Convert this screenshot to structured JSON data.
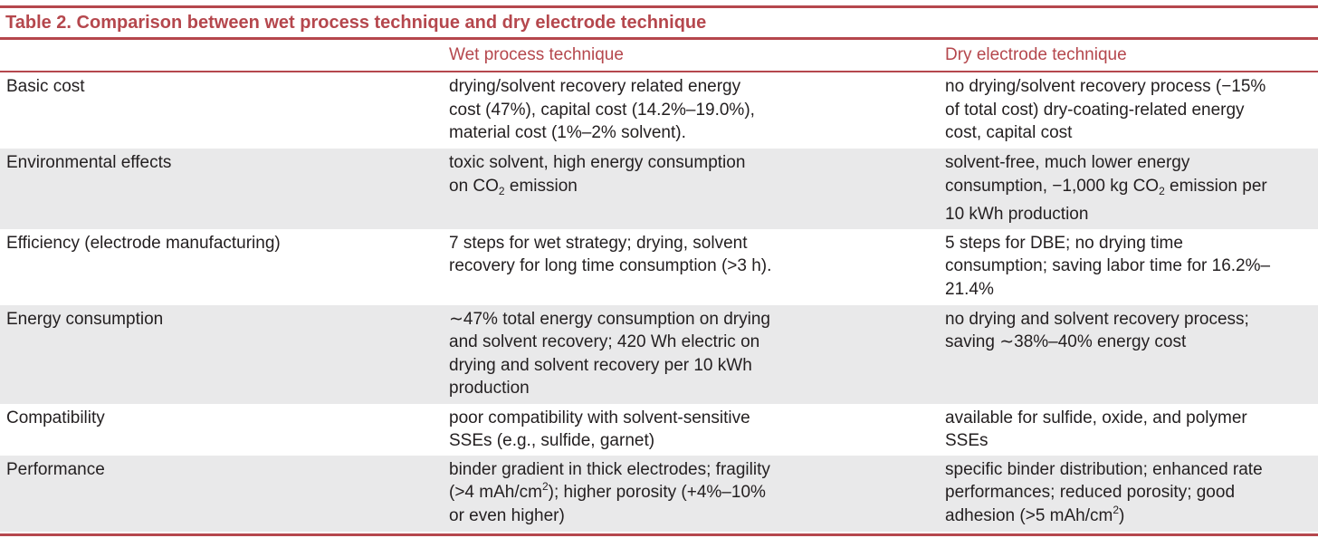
{
  "table": {
    "title": "Table 2.  Comparison between wet process technique and dry electrode technique",
    "headers": [
      "",
      "Wet process technique",
      "Dry electrode technique"
    ],
    "rows": [
      {
        "label": "Basic cost",
        "wet": [
          "drying/solvent recovery related energy",
          "cost (47%), capital cost (14.2%–19.0%),",
          "material cost (1%–2% solvent)."
        ],
        "dry": [
          "no drying/solvent recovery process (−15%",
          "of total cost) dry-coating-related energy",
          "cost, capital cost"
        ]
      },
      {
        "label": "Environmental effects",
        "wet": [
          "toxic solvent, high energy consumption",
          "on CO2 emission"
        ],
        "dry": [
          "solvent-free, much lower energy",
          "consumption, −1,000 kg CO2 emission per",
          "10 kWh production"
        ]
      },
      {
        "label": "Efficiency (electrode manufacturing)",
        "wet": [
          "7 steps for wet strategy; drying, solvent",
          "recovery for long time consumption (>3 h)."
        ],
        "dry": [
          "5 steps for DBE; no drying time",
          "consumption; saving labor time for 16.2%–",
          "21.4%"
        ]
      },
      {
        "label": "Energy consumption",
        "wet": [
          "∼47% total energy consumption on drying",
          "and solvent recovery; 420 Wh electric on",
          "drying and solvent recovery per 10 kWh",
          "production"
        ],
        "dry": [
          "no drying and solvent recovery process;",
          "saving ∼38%–40% energy cost"
        ]
      },
      {
        "label": "Compatibility",
        "wet": [
          "poor compatibility with solvent-sensitive",
          "SSEs (e.g., sulfide, garnet)"
        ],
        "dry": [
          "available for sulfide, oxide, and polymer",
          "SSEs"
        ]
      },
      {
        "label": "Performance",
        "wet": [
          "binder gradient in thick electrodes; fragility",
          "(>4 mAh/cm2); higher porosity (+4%–10%",
          "or even higher)"
        ],
        "dry": [
          "specific binder distribution; enhanced rate",
          "performances; reduced porosity; good",
          "adhesion (>5 mAh/cm2)"
        ]
      }
    ]
  },
  "colors": {
    "accent": "#b5474d",
    "shade": "#e9e9ea",
    "text": "#231f20"
  }
}
